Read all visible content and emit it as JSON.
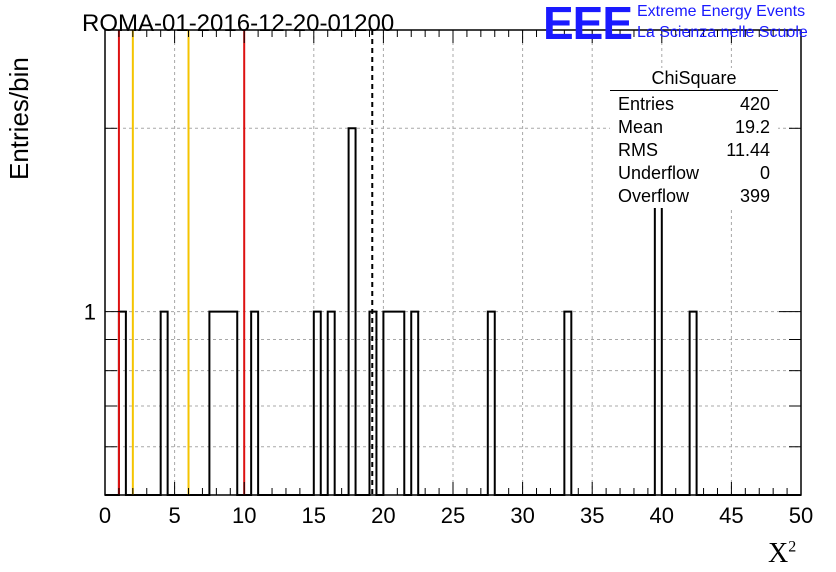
{
  "title": "ROMA-01-2016-12-20-01200",
  "logo": {
    "text": "EEE",
    "line1": "Extreme Energy Events",
    "line2": "La Scienza nelle Scuole"
  },
  "stats": {
    "title": "ChiSquare",
    "rows": [
      {
        "label": "Entries",
        "value": "420"
      },
      {
        "label": "Mean",
        "value": "19.2"
      },
      {
        "label": "RMS",
        "value": "11.44"
      },
      {
        "label": "Underflow",
        "value": "0"
      },
      {
        "label": "Overflow",
        "value": "399"
      }
    ]
  },
  "chart_data": {
    "type": "histogram",
    "xlabel": "X",
    "xlabel_sup": "2",
    "ylabel": "Entries/bin",
    "xlim": [
      0,
      50
    ],
    "yscale": "log",
    "ylim": [
      0.5,
      2.9
    ],
    "xticks": [
      0,
      5,
      10,
      15,
      20,
      25,
      30,
      35,
      40,
      45,
      50
    ],
    "yticks_labeled": [
      1
    ],
    "grid": true,
    "bin_width": 0.5,
    "bins": [
      {
        "x0": 1.0,
        "count": 1
      },
      {
        "x0": 4.0,
        "count": 1
      },
      {
        "x0": 7.5,
        "count": 1
      },
      {
        "x0": 8.0,
        "count": 1
      },
      {
        "x0": 8.5,
        "count": 1
      },
      {
        "x0": 9.0,
        "count": 1
      },
      {
        "x0": 10.5,
        "count": 1
      },
      {
        "x0": 15.0,
        "count": 1
      },
      {
        "x0": 16.0,
        "count": 1
      },
      {
        "x0": 17.5,
        "count": 2
      },
      {
        "x0": 19.0,
        "count": 1
      },
      {
        "x0": 20.0,
        "count": 1
      },
      {
        "x0": 20.5,
        "count": 1
      },
      {
        "x0": 21.0,
        "count": 1
      },
      {
        "x0": 22.0,
        "count": 1
      },
      {
        "x0": 27.5,
        "count": 1
      },
      {
        "x0": 33.0,
        "count": 1
      },
      {
        "x0": 39.5,
        "count": 2
      },
      {
        "x0": 42.0,
        "count": 1
      }
    ],
    "vlines": [
      {
        "x": 1.0,
        "color": "#dd1111",
        "style": "solid"
      },
      {
        "x": 2.0,
        "color": "#f5c400",
        "style": "solid"
      },
      {
        "x": 6.0,
        "color": "#f5c400",
        "style": "solid"
      },
      {
        "x": 10.0,
        "color": "#dd1111",
        "style": "solid"
      },
      {
        "x": 19.2,
        "color": "#000000",
        "style": "dashed"
      }
    ]
  }
}
